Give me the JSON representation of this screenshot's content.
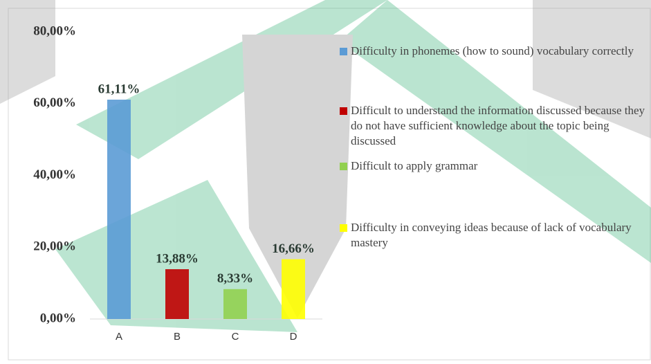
{
  "chart_data": {
    "type": "bar",
    "categories": [
      "A",
      "B",
      "C",
      "D"
    ],
    "values": [
      61.11,
      13.88,
      8.33,
      16.66
    ],
    "value_labels": [
      "61,11%",
      "13,88%",
      "8,33%",
      "16,66%"
    ],
    "colors": [
      "#5b9bd5",
      "#c00000",
      "#92d050",
      "#ffff00"
    ],
    "legend": [
      "Difficulty in phonemes (how to sound) vocabulary correctly",
      "Difficult to understand the information discussed because they do not have sufficient knowledge about the topic being discussed",
      "Difficult to apply grammar",
      "Difficulty in conveying ideas because of lack of vocabulary mastery"
    ],
    "ylim": [
      0,
      80
    ],
    "yticks": [
      {
        "value": 0,
        "label": "0,00%"
      },
      {
        "value": 20,
        "label": "20,00%"
      },
      {
        "value": 40,
        "label": "40,00%"
      },
      {
        "value": 60,
        "label": "60,00%"
      },
      {
        "value": 80,
        "label": "80,00%"
      }
    ],
    "grid": false
  }
}
